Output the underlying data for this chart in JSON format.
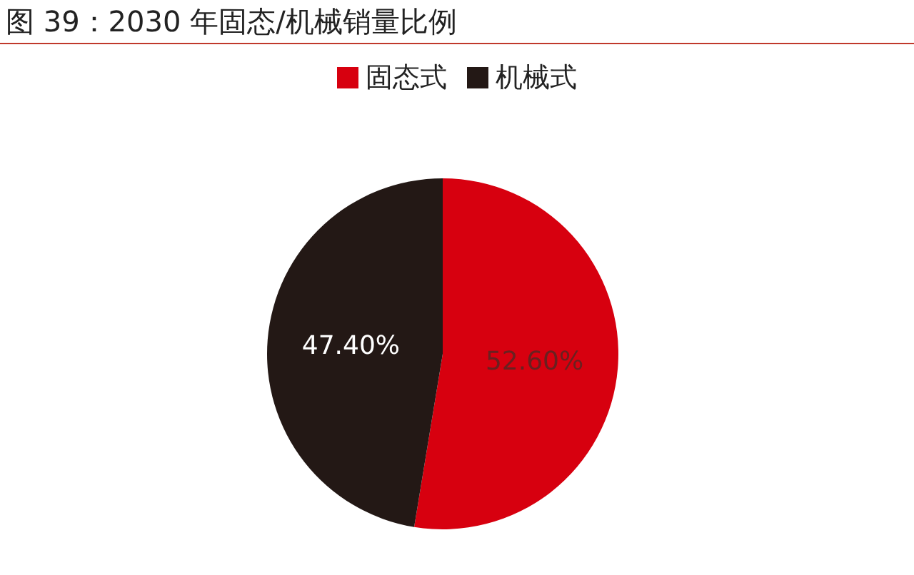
{
  "chart_data": {
    "type": "pie",
    "title": "图 39：2030 年固态/机械销量比例",
    "categories": [
      "固态式",
      "机械式"
    ],
    "values": [
      52.6,
      47.4
    ],
    "colors": [
      "#d7000f",
      "#231815"
    ],
    "value_labels": [
      "52.60%",
      "47.40%"
    ],
    "legend": "top"
  }
}
